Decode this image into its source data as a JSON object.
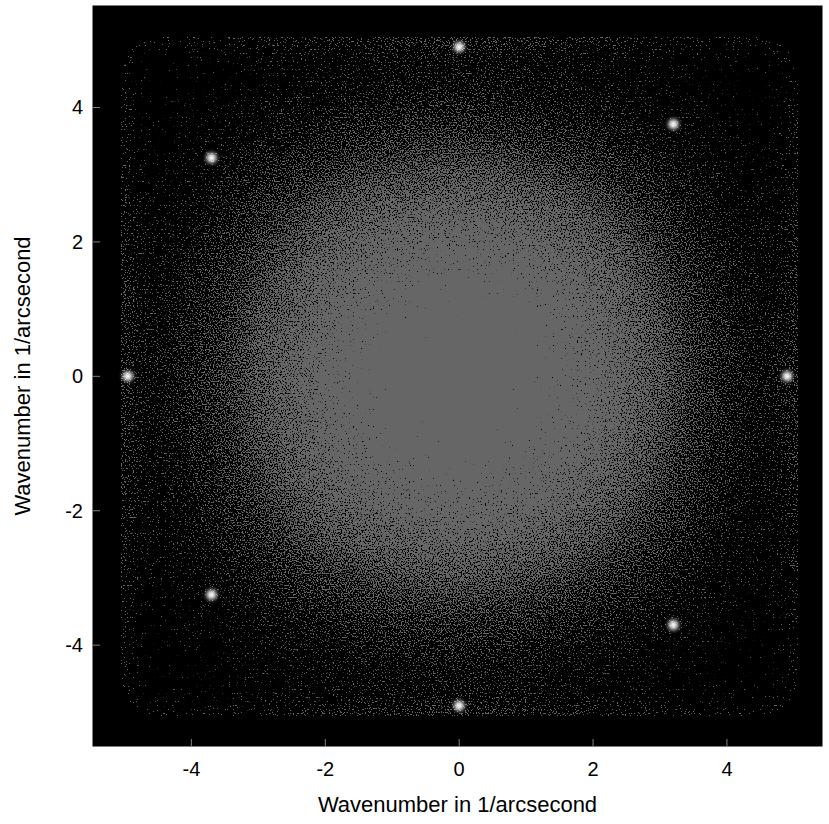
{
  "chart_data": {
    "type": "image",
    "xlabel": "Wavenumber in 1/arcsecond",
    "ylabel": "Wavenumber in 1/arcsecond",
    "xlim": [
      -5.47,
      5.42
    ],
    "ylim": [
      -5.5,
      5.51
    ],
    "xticks": [
      -4,
      -2,
      0,
      2,
      4
    ],
    "yticks": [
      -4,
      -2,
      0,
      2,
      4
    ],
    "cell_x": [
      -5,
      -4,
      -3,
      -2,
      -1,
      0,
      1,
      2,
      3,
      4,
      5
    ],
    "cell_y": [
      5,
      4,
      3,
      2,
      1,
      0,
      -1,
      -2,
      -3,
      -4,
      -5
    ],
    "cells": [
      [
        0.18,
        0.2,
        0.23,
        0.26,
        0.28,
        0.29,
        0.28,
        0.26,
        0.23,
        0.2,
        0.18
      ],
      [
        0.2,
        0.24,
        0.29,
        0.33,
        0.36,
        0.38,
        0.36,
        0.33,
        0.29,
        0.24,
        0.2
      ],
      [
        0.23,
        0.29,
        0.37,
        0.44,
        0.49,
        0.51,
        0.49,
        0.44,
        0.37,
        0.29,
        0.23
      ],
      [
        0.26,
        0.33,
        0.44,
        0.55,
        0.62,
        0.66,
        0.62,
        0.55,
        0.44,
        0.33,
        0.26
      ],
      [
        0.28,
        0.36,
        0.49,
        0.62,
        0.73,
        0.79,
        0.73,
        0.62,
        0.49,
        0.36,
        0.28
      ],
      [
        0.29,
        0.38,
        0.51,
        0.66,
        0.79,
        0.87,
        0.79,
        0.66,
        0.51,
        0.38,
        0.29
      ],
      [
        0.28,
        0.36,
        0.49,
        0.62,
        0.73,
        0.79,
        0.73,
        0.62,
        0.49,
        0.36,
        0.28
      ],
      [
        0.26,
        0.33,
        0.44,
        0.55,
        0.62,
        0.66,
        0.62,
        0.55,
        0.44,
        0.33,
        0.26
      ],
      [
        0.23,
        0.29,
        0.37,
        0.44,
        0.49,
        0.51,
        0.49,
        0.44,
        0.37,
        0.29,
        0.23
      ],
      [
        0.2,
        0.24,
        0.29,
        0.33,
        0.36,
        0.38,
        0.36,
        0.33,
        0.29,
        0.24,
        0.2
      ],
      [
        0.18,
        0.2,
        0.23,
        0.26,
        0.28,
        0.29,
        0.28,
        0.26,
        0.23,
        0.2,
        0.18
      ]
    ],
    "x": [
      0,
      0,
      -4.95,
      4.9,
      -3.7,
      3.2,
      -3.7,
      3.2
    ],
    "y": [
      4.9,
      -4.9,
      0,
      0,
      3.25,
      3.75,
      -3.25,
      -3.7
    ],
    "color": "#ffffff",
    "tick_labels": true
  }
}
